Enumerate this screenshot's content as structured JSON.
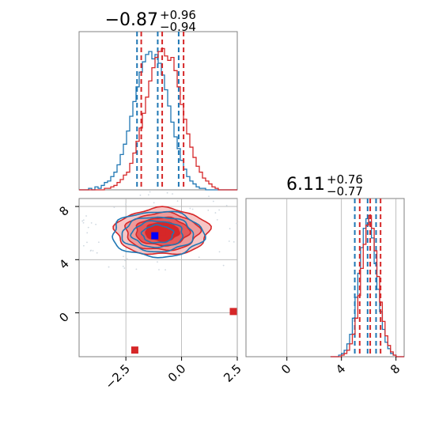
{
  "chart_data": [
    {
      "type": "histogram",
      "panel": "param0-marginal",
      "title": {
        "median": "−0.87",
        "plus": "+0.96",
        "minus": "−0.94"
      },
      "xlim": [
        -4.6,
        2.5
      ],
      "series": [
        {
          "color": "#d62728",
          "bins": [
            -4.6,
            -4.458,
            -4.316,
            -4.174,
            -4.032,
            -3.89,
            -3.748,
            -3.606,
            -3.464,
            -3.322,
            -3.18,
            -3.038,
            -2.896,
            -2.754,
            -2.612,
            -2.47,
            -2.328,
            -2.186,
            -2.044,
            -1.902,
            -1.76,
            -1.618,
            -1.476,
            -1.334,
            -1.192,
            -1.05,
            -0.908,
            -0.766,
            -0.624,
            -0.482,
            -0.34,
            -0.198,
            -0.056,
            0.086,
            0.228,
            0.37,
            0.512,
            0.654,
            0.796,
            0.938,
            1.08,
            1.222,
            1.364,
            1.506,
            1.648,
            1.79,
            1.932,
            2.074,
            2.216,
            2.358,
            2.5
          ],
          "counts": [
            0,
            0,
            0,
            0,
            0,
            0,
            0,
            0,
            1,
            1,
            2,
            3,
            5,
            7,
            10,
            12,
            18,
            25,
            33,
            42,
            52,
            63,
            74,
            83,
            90,
            94,
            96,
            91,
            88,
            90,
            81,
            70,
            58,
            48,
            38,
            29,
            22,
            16,
            12,
            8,
            6,
            4,
            2,
            1,
            0,
            0,
            0,
            0,
            0,
            0
          ],
          "quantiles": [
            -1.81,
            -0.87,
            0.09
          ]
        },
        {
          "color": "#1f77b4",
          "bins": [
            -4.6,
            -4.458,
            -4.316,
            -4.174,
            -4.032,
            -3.89,
            -3.748,
            -3.606,
            -3.464,
            -3.322,
            -3.18,
            -3.038,
            -2.896,
            -2.754,
            -2.612,
            -2.47,
            -2.328,
            -2.186,
            -2.044,
            -1.902,
            -1.76,
            -1.618,
            -1.476,
            -1.334,
            -1.192,
            -1.05,
            -0.908,
            -0.766,
            -0.624,
            -0.482,
            -0.34,
            -0.198,
            -0.056,
            0.086,
            0.228,
            0.37,
            0.512,
            0.654,
            0.796,
            0.938,
            1.08,
            1.222,
            1.364,
            1.506,
            1.648,
            1.79,
            1.932,
            2.074,
            2.216,
            2.358,
            2.5
          ],
          "counts": [
            0,
            0,
            0,
            1,
            0,
            2,
            1,
            3,
            5,
            6,
            9,
            12,
            17,
            24,
            31,
            40,
            50,
            60,
            70,
            80,
            87,
            92,
            94,
            89,
            92,
            86,
            78,
            68,
            57,
            46,
            36,
            28,
            20,
            14,
            9,
            6,
            4,
            2,
            1,
            1,
            0,
            0,
            0,
            0,
            0,
            0,
            0,
            0,
            0,
            0
          ],
          "quantiles": [
            -2.0,
            -1.07,
            -0.13
          ]
        }
      ]
    },
    {
      "type": "histogram",
      "panel": "param1-marginal",
      "title": {
        "median": "6.11",
        "plus": "+0.76",
        "minus": "−0.77"
      },
      "xlim": [
        -3.0,
        8.6
      ],
      "xticks": [
        0,
        4,
        8
      ],
      "xtick_labels": [
        "0",
        "4",
        "8"
      ],
      "series": [
        {
          "color": "#d62728",
          "bins": [
            3.2,
            3.4,
            3.6,
            3.8,
            4.0,
            4.2,
            4.4,
            4.6,
            4.8,
            5.0,
            5.2,
            5.4,
            5.6,
            5.8,
            6.0,
            6.2,
            6.4,
            6.6,
            6.8,
            7.0,
            7.2,
            7.4,
            7.6,
            7.8,
            8.0,
            8.2,
            8.4,
            8.6
          ],
          "counts": [
            0,
            0,
            0,
            0,
            1,
            2,
            4,
            8,
            14,
            24,
            38,
            55,
            70,
            82,
            88,
            80,
            66,
            50,
            34,
            22,
            13,
            7,
            3,
            1,
            0,
            0,
            0
          ],
          "quantiles": [
            5.34,
            6.11,
            6.87
          ]
        },
        {
          "color": "#1f77b4",
          "bins": [
            3.2,
            3.4,
            3.6,
            3.8,
            4.0,
            4.2,
            4.4,
            4.6,
            4.8,
            5.0,
            5.2,
            5.4,
            5.6,
            5.8,
            6.0,
            6.2,
            6.4,
            6.6,
            6.8,
            7.0,
            7.2,
            7.4,
            7.6,
            7.8,
            8.0,
            8.2,
            8.4,
            8.6
          ],
          "counts": [
            0,
            0,
            0,
            1,
            2,
            4,
            8,
            14,
            24,
            37,
            52,
            68,
            80,
            86,
            84,
            74,
            58,
            42,
            28,
            17,
            9,
            5,
            2,
            1,
            0,
            0,
            0
          ],
          "quantiles": [
            4.98,
            5.92,
            6.54
          ]
        }
      ]
    },
    {
      "type": "contour",
      "panel": "joint",
      "xlim": [
        -4.6,
        2.5
      ],
      "ylim": [
        -3.3,
        8.6
      ],
      "xticks": [
        -2.5,
        0.0,
        2.5
      ],
      "xtick_labels": [
        "−2.5",
        "0.0",
        "2.5"
      ],
      "yticks": [
        0,
        4,
        8
      ],
      "ytick_labels": [
        "0",
        "4",
        "8"
      ],
      "grid": true,
      "series": [
        {
          "color": "#d62728",
          "center": [
            -0.87,
            6.11
          ],
          "radii": [
            [
              2.1,
              1.75
            ],
            [
              1.65,
              1.4
            ],
            [
              1.2,
              1.05
            ],
            [
              0.75,
              0.7
            ]
          ],
          "truth_points": [
            [
              -0.87,
              6.11
            ],
            [
              -2.1,
              -2.8
            ],
            [
              2.45,
              0.1
            ]
          ]
        },
        {
          "color": "#1f77b4",
          "center": [
            -1.07,
            5.92
          ],
          "radii": [
            [
              2.05,
              1.7
            ],
            [
              1.6,
              1.3
            ],
            [
              1.15,
              0.98
            ],
            [
              0.7,
              0.66
            ]
          ],
          "truth_points": [
            [
              -1.2,
              5.8
            ]
          ]
        }
      ]
    }
  ],
  "colors": {
    "red": "#d62728",
    "blue": "#1f77b4",
    "grid": "#b0b0b0"
  }
}
